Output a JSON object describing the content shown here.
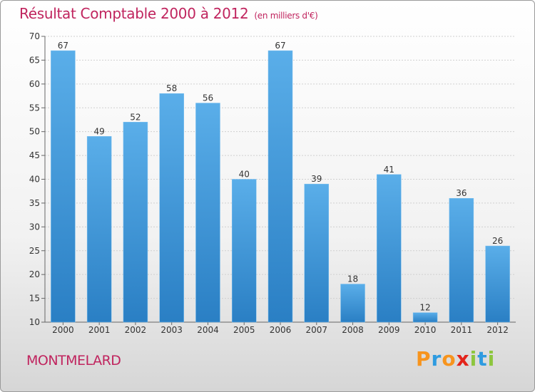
{
  "header": {
    "title": "Résultat Comptable 2000 à 2012",
    "subtitle": "(en milliers d'€)"
  },
  "commune": "MONTMELARD",
  "brand": {
    "letters": [
      {
        "char": "P",
        "color": "#f7941d"
      },
      {
        "char": "r",
        "color": "#2e9be0"
      },
      {
        "char": "o",
        "color": "#f7941d"
      },
      {
        "char": "x",
        "color": "#e3241b"
      },
      {
        "char": "i",
        "color": "#8dc63f"
      },
      {
        "char": "t",
        "color": "#2e9be0"
      },
      {
        "char": "i",
        "color": "#8dc63f"
      }
    ]
  },
  "chart_data": {
    "type": "bar",
    "categories": [
      "2000",
      "2001",
      "2002",
      "2003",
      "2004",
      "2005",
      "2006",
      "2007",
      "2008",
      "2009",
      "2010",
      "2011",
      "2012"
    ],
    "values": [
      67,
      49,
      52,
      58,
      56,
      40,
      67,
      39,
      18,
      41,
      12,
      36,
      26
    ],
    "ylim": [
      10,
      70
    ],
    "yticks": [
      10,
      15,
      20,
      25,
      30,
      35,
      40,
      45,
      50,
      55,
      60,
      65,
      70
    ],
    "grid": true,
    "data_labels": true,
    "bar_color_top": "#5aaee9",
    "bar_color_bottom": "#2a7fc4"
  }
}
